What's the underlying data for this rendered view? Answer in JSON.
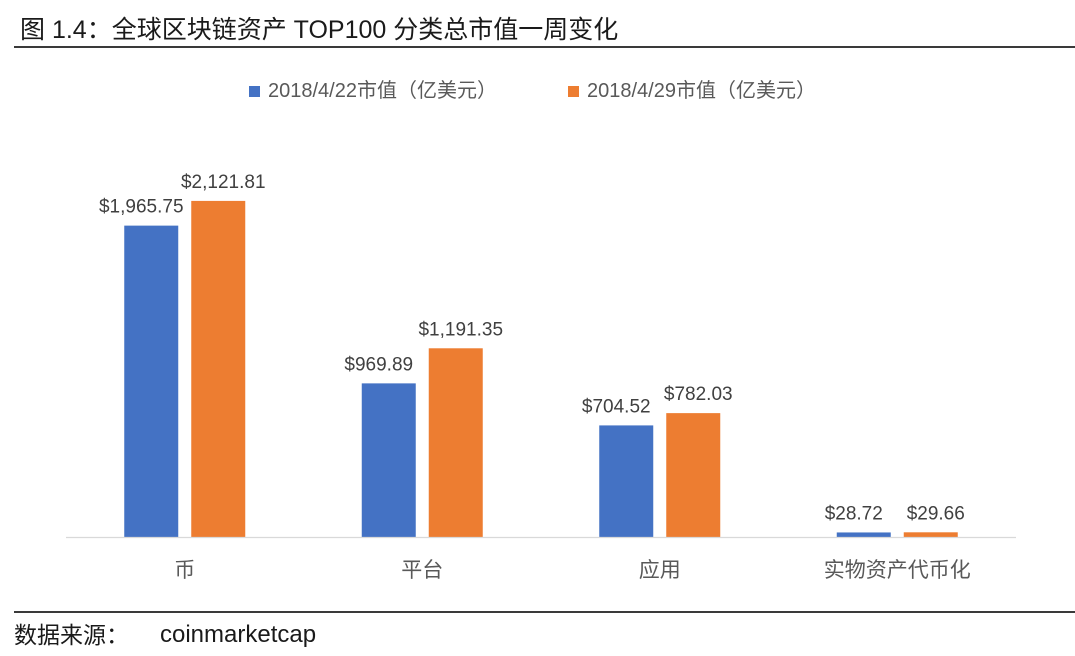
{
  "figure": {
    "source_label": "数据来源：",
    "source_value": "coinmarketcap"
  },
  "chart_data": {
    "type": "bar",
    "title": "图 1.4：全球区块链资产 TOP100 分类总市值一周变化",
    "xlabel": "",
    "ylabel": "",
    "categories": [
      "币",
      "平台",
      "应用",
      "实物资产代币化"
    ],
    "series": [
      {
        "name": "2018/4/22市值（亿美元）",
        "color": "#4472C4",
        "values": [
          1965.75,
          969.89,
          704.52,
          28.72
        ],
        "data_labels": [
          "$1,965.75",
          "$969.89",
          "$704.52",
          "$28.72"
        ]
      },
      {
        "name": "2018/4/29市值（亿美元）",
        "color": "#ED7D31",
        "values": [
          2121.81,
          1191.35,
          782.03,
          29.66
        ],
        "data_labels": [
          "$2,121.81",
          "$1,191.35",
          "$782.03",
          "$29.66"
        ]
      }
    ],
    "ylim": [
      0,
      2500
    ],
    "grid": false,
    "legend": "top",
    "axis_color": "#D9D9D9",
    "data_label_color": "#404040",
    "category_label_color": "#595959"
  }
}
